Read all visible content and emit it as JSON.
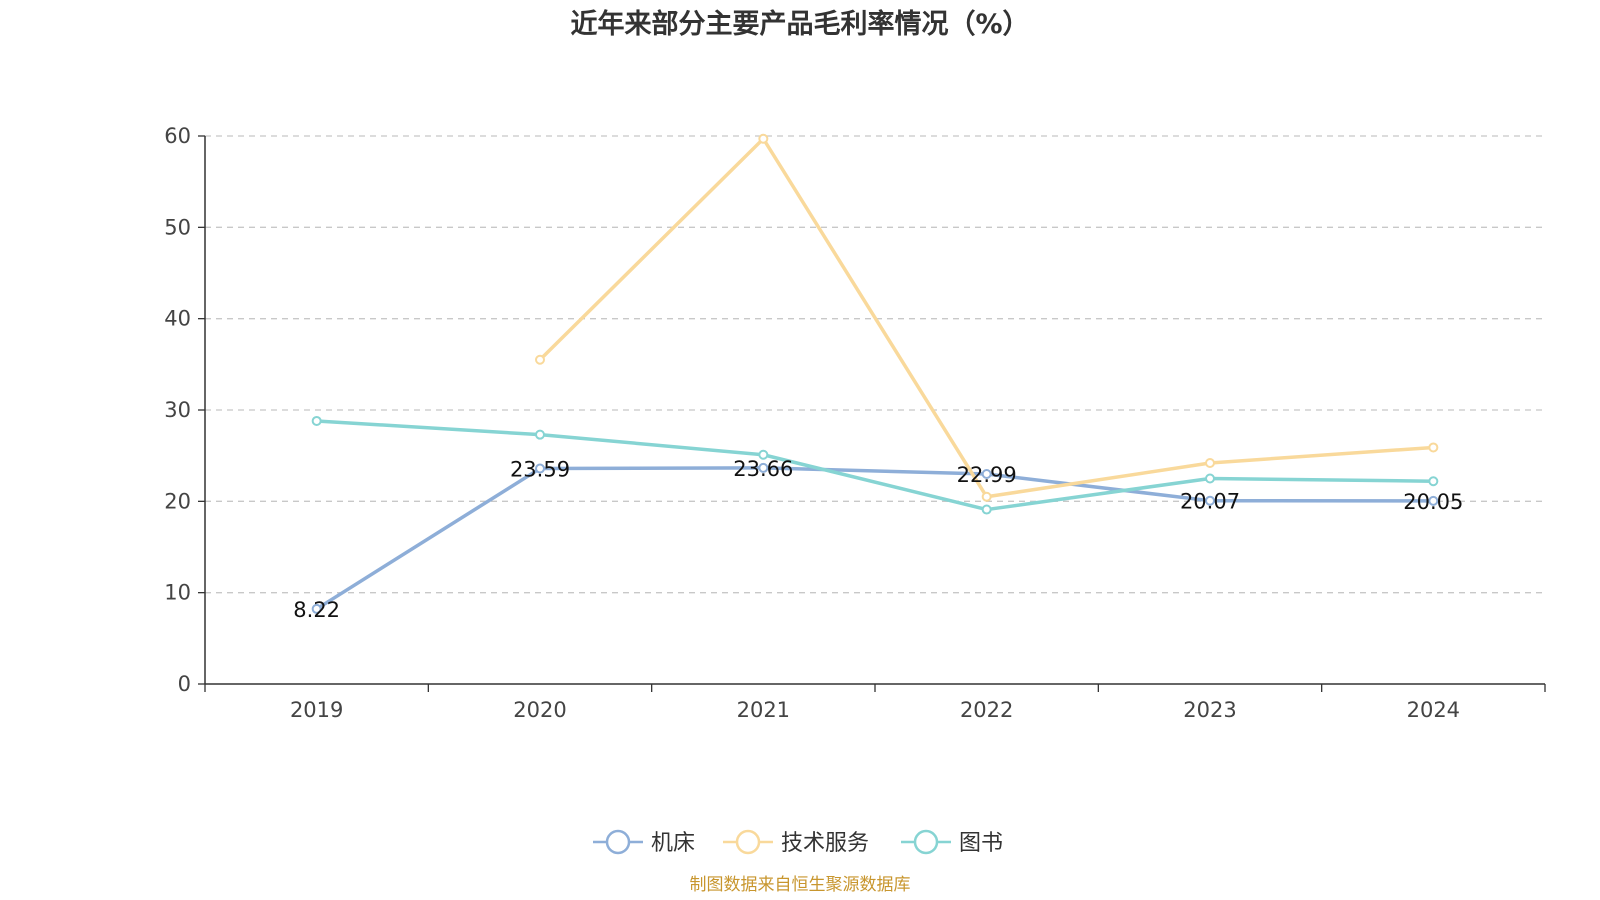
{
  "source_note": "制图数据来自恒生聚源数据库",
  "chart_data": {
    "type": "line",
    "title": "近年来部分主要产品毛利率情况（%）",
    "xlabel": "",
    "ylabel": "",
    "categories": [
      "2019",
      "2020",
      "2021",
      "2022",
      "2023",
      "2024"
    ],
    "ylim": [
      0,
      60
    ],
    "yticks": [
      0,
      10,
      20,
      30,
      40,
      50,
      60
    ],
    "grid": true,
    "legend_position": "bottom",
    "series": [
      {
        "name": "机床",
        "color": "#8eaed8",
        "values": [
          8.22,
          23.59,
          23.66,
          22.99,
          20.07,
          20.05
        ],
        "data_labels": [
          "8.22",
          "23.59",
          "23.66",
          "22.99",
          "20.07",
          "20.05"
        ]
      },
      {
        "name": "技术服务",
        "color": "#f9d99b",
        "values": [
          null,
          35.5,
          59.7,
          20.5,
          24.2,
          25.9
        ],
        "data_labels": []
      },
      {
        "name": "图书",
        "color": "#86d4d3",
        "values": [
          28.8,
          27.3,
          25.1,
          19.1,
          22.5,
          22.2
        ],
        "data_labels": []
      }
    ]
  }
}
